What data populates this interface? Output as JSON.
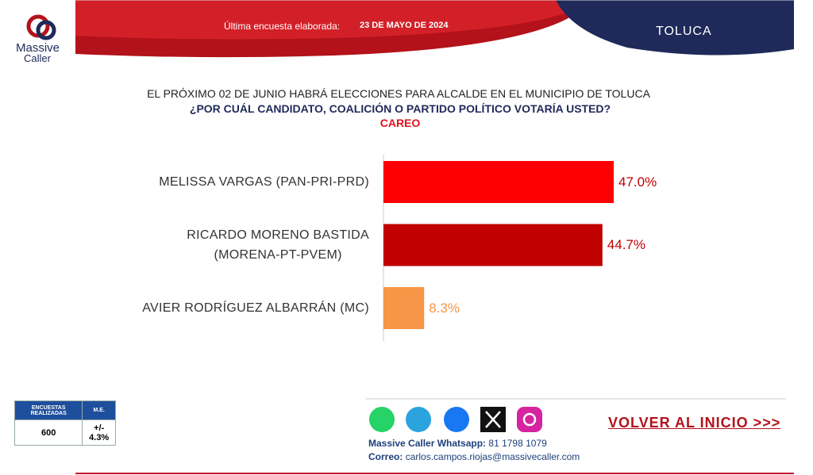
{
  "logo": {
    "line1": "Massive",
    "line2": "Caller"
  },
  "header": {
    "label": "Última encuesta elaborada:",
    "date": "23 DE MAYO DE 2024",
    "place": "TOLUCA"
  },
  "chart_data": {
    "type": "bar",
    "orientation": "horizontal",
    "title": "EL PRÓXIMO 02 DE JUNIO HABRÁ ELECCIONES PARA ALCALDE EN EL MUNICIPIO DE TOLUCA",
    "subtitle": "¿POR CUÁL CANDIDATO, COALICIÓN O PARTIDO POLÍTICO VOTARÍA USTED?",
    "annotation": "CAREO",
    "categories": [
      "MELISSA VARGAS (PAN-PRI-PRD)",
      "RICARDO MORENO BASTIDA\n(MORENA-PT-PVEM)",
      "AVIER RODRÍGUEZ ALBARRÁN (MC)"
    ],
    "values": [
      47.0,
      44.7,
      8.3
    ],
    "value_labels": [
      "47.0%",
      "44.7%",
      "8.3%"
    ],
    "colors": [
      "#ff0000",
      "#c00000",
      "#f79646"
    ]
  },
  "stats": {
    "headers": [
      "ENCUESTAS REALIZADAS",
      "M.E."
    ],
    "values": [
      "600",
      "+/- 4.3%"
    ]
  },
  "footer": {
    "whatsapp_label": "Massive Caller Whatsapp:",
    "whatsapp": "81 1798 1079",
    "email_label": "Correo:",
    "email": "carlos.campos.riojas@massivecaller.com",
    "link": "VOLVER AL INICIO >>>"
  }
}
